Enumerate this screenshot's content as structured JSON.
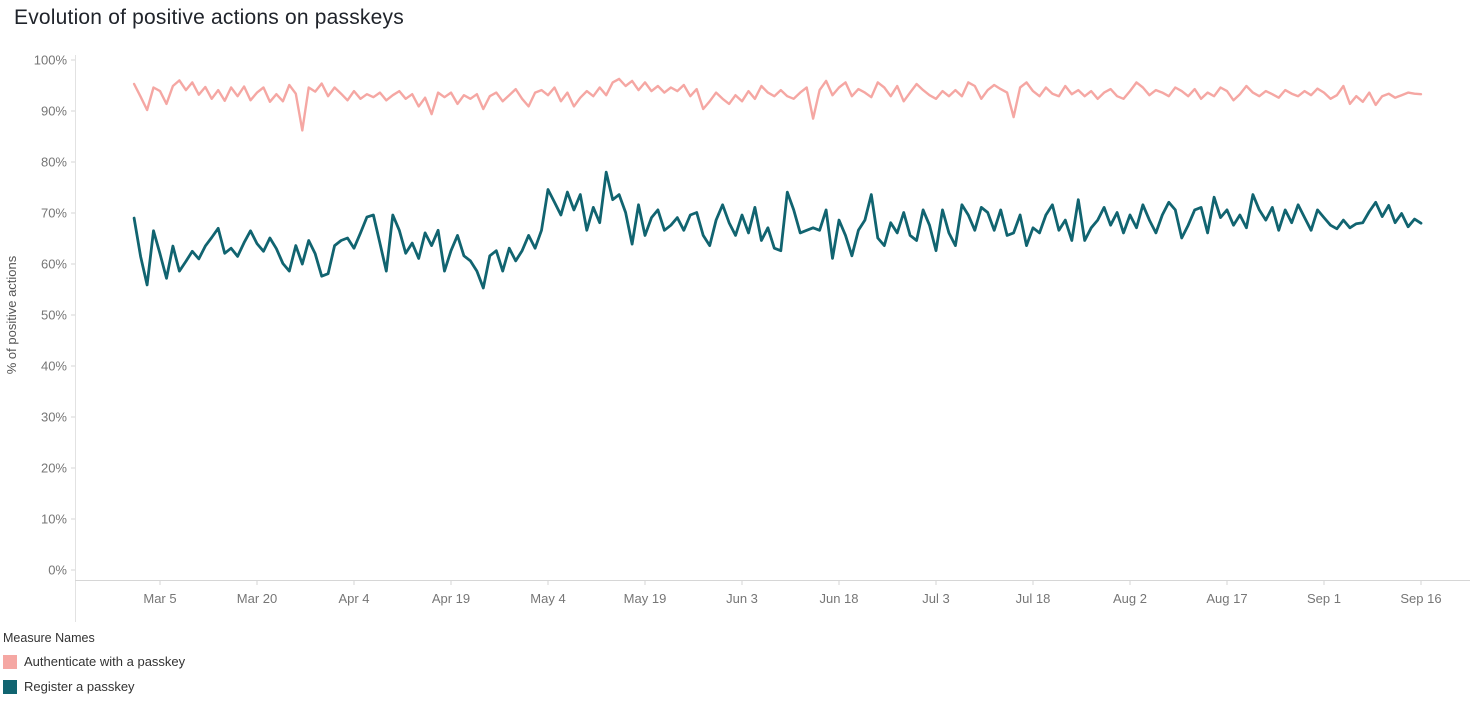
{
  "page": {
    "title": "Evolution of positive actions on passkeys"
  },
  "legend": {
    "title": "Measure Names",
    "items": [
      {
        "label": "Authenticate with a passkey",
        "color": "#f5a7a3"
      },
      {
        "label": "Register a passkey",
        "color": "#116470"
      }
    ]
  },
  "chart_data": {
    "type": "line",
    "title": "Evolution of positive actions on passkeys",
    "xlabel": "",
    "ylabel": "% of positive actions",
    "ylim": [
      0,
      100
    ],
    "grid": false,
    "legend_position": "bottom-left",
    "y_ticks": [
      {
        "value": 0,
        "label": "0%"
      },
      {
        "value": 10,
        "label": "10%"
      },
      {
        "value": 20,
        "label": "20%"
      },
      {
        "value": 30,
        "label": "30%"
      },
      {
        "value": 40,
        "label": "40%"
      },
      {
        "value": 50,
        "label": "50%"
      },
      {
        "value": 60,
        "label": "60%"
      },
      {
        "value": 70,
        "label": "70%"
      },
      {
        "value": 80,
        "label": "80%"
      },
      {
        "value": 90,
        "label": "90%"
      },
      {
        "value": 100,
        "label": "100%"
      }
    ],
    "x_ticks": [
      {
        "day": 4,
        "label": "Mar 5"
      },
      {
        "day": 19,
        "label": "Mar 20"
      },
      {
        "day": 34,
        "label": "Apr 4"
      },
      {
        "day": 49,
        "label": "Apr 19"
      },
      {
        "day": 64,
        "label": "May 4"
      },
      {
        "day": 79,
        "label": "May 19"
      },
      {
        "day": 94,
        "label": "Jun 3"
      },
      {
        "day": 109,
        "label": "Jun 18"
      },
      {
        "day": 124,
        "label": "Jul 3"
      },
      {
        "day": 139,
        "label": "Jul 18"
      },
      {
        "day": 154,
        "label": "Aug 2"
      },
      {
        "day": 169,
        "label": "Aug 17"
      },
      {
        "day": 184,
        "label": "Sep 1"
      },
      {
        "day": 199,
        "label": "Sep 16"
      }
    ],
    "series": [
      {
        "name": "Authenticate with a passkey",
        "color": "#f5a7a3",
        "stroke_width": 2.4,
        "values": [
          95.3,
          92.8,
          90.2,
          94.6,
          93.9,
          91.4,
          94.9,
          96.0,
          94.1,
          95.6,
          93.2,
          94.7,
          92.4,
          94.1,
          92.0,
          94.6,
          92.9,
          94.8,
          92.1,
          93.6,
          94.6,
          91.8,
          93.3,
          91.9,
          95.1,
          93.4,
          86.2,
          94.6,
          93.8,
          95.4,
          92.9,
          94.6,
          93.4,
          92.1,
          93.9,
          92.4,
          93.3,
          92.7,
          93.6,
          92.1,
          93.1,
          93.9,
          92.4,
          93.3,
          90.9,
          92.6,
          89.4,
          93.6,
          92.7,
          93.6,
          91.4,
          93.1,
          92.4,
          93.3,
          90.4,
          92.9,
          93.6,
          91.9,
          93.1,
          94.3,
          92.4,
          90.9,
          93.6,
          94.1,
          93.1,
          94.6,
          91.9,
          93.6,
          90.9,
          92.6,
          93.9,
          92.9,
          94.6,
          93.1,
          95.6,
          96.3,
          94.9,
          95.9,
          94.1,
          95.6,
          93.9,
          94.9,
          93.6,
          94.6,
          93.9,
          95.1,
          92.9,
          94.3,
          90.4,
          91.9,
          93.6,
          92.4,
          91.4,
          93.1,
          91.9,
          93.9,
          92.4,
          94.9,
          93.6,
          92.9,
          94.1,
          92.9,
          92.4,
          93.6,
          94.6,
          88.5,
          94.1,
          95.9,
          93.1,
          94.6,
          95.6,
          92.9,
          94.3,
          93.6,
          92.7,
          95.6,
          94.6,
          92.9,
          94.9,
          91.9,
          93.6,
          95.3,
          94.1,
          93.1,
          92.4,
          93.9,
          92.9,
          94.1,
          92.9,
          95.6,
          94.9,
          92.4,
          94.1,
          95.1,
          94.3,
          93.6,
          88.8,
          94.6,
          95.6,
          93.9,
          92.9,
          94.6,
          93.4,
          92.9,
          94.9,
          93.3,
          94.1,
          92.9,
          93.9,
          92.4,
          93.6,
          94.3,
          92.9,
          92.4,
          93.9,
          95.6,
          94.6,
          93.1,
          94.1,
          93.6,
          92.9,
          94.6,
          93.9,
          92.9,
          94.3,
          92.4,
          93.6,
          92.9,
          94.6,
          93.9,
          92.1,
          93.3,
          94.9,
          93.6,
          92.9,
          93.9,
          93.3,
          92.6,
          94.1,
          93.4,
          92.9,
          93.9,
          93.1,
          94.4,
          93.6,
          92.4,
          93.1,
          94.9,
          91.4,
          92.9,
          91.8,
          93.6,
          91.2,
          92.9,
          93.4,
          92.6,
          93.1,
          93.6,
          93.4,
          93.3
        ]
      },
      {
        "name": "Register a passkey",
        "color": "#116470",
        "stroke_width": 2.8,
        "values": [
          69.0,
          61.5,
          55.9,
          66.5,
          62.0,
          57.2,
          63.5,
          58.6,
          60.5,
          62.5,
          61.0,
          63.5,
          65.2,
          67.0,
          62.1,
          63.1,
          61.5,
          64.2,
          66.5,
          64.0,
          62.5,
          65.1,
          63.0,
          60.1,
          58.6,
          63.6,
          60.0,
          64.6,
          62.0,
          57.6,
          58.1,
          63.6,
          64.6,
          65.1,
          63.1,
          66.1,
          69.2,
          69.6,
          64.1,
          58.6,
          69.6,
          66.6,
          62.1,
          64.1,
          61.1,
          66.1,
          63.6,
          66.6,
          58.6,
          62.6,
          65.6,
          61.6,
          60.6,
          58.6,
          55.3,
          61.6,
          62.6,
          58.6,
          63.1,
          60.6,
          62.6,
          65.6,
          63.1,
          66.6,
          74.6,
          72.1,
          69.6,
          74.1,
          70.6,
          73.6,
          66.6,
          71.1,
          68.1,
          78.0,
          72.6,
          73.6,
          70.1,
          63.9,
          71.6,
          65.6,
          69.1,
          70.6,
          66.6,
          67.6,
          69.1,
          66.6,
          69.6,
          70.1,
          65.6,
          63.6,
          68.6,
          71.6,
          68.1,
          65.6,
          69.6,
          66.1,
          71.1,
          64.6,
          67.1,
          63.1,
          62.6,
          74.1,
          70.6,
          66.1,
          66.6,
          67.1,
          66.6,
          70.6,
          61.1,
          68.6,
          65.6,
          61.6,
          66.6,
          68.6,
          73.6,
          65.1,
          63.6,
          68.1,
          66.1,
          70.1,
          65.6,
          64.6,
          70.6,
          67.6,
          62.6,
          70.6,
          66.1,
          63.6,
          71.6,
          69.6,
          66.6,
          71.1,
          70.1,
          66.6,
          70.6,
          65.6,
          66.1,
          69.6,
          63.6,
          67.1,
          66.1,
          69.6,
          71.6,
          66.6,
          68.6,
          64.6,
          72.6,
          64.6,
          67.1,
          68.6,
          71.1,
          67.6,
          70.1,
          66.1,
          69.6,
          67.1,
          71.6,
          68.6,
          66.1,
          69.6,
          72.1,
          70.6,
          65.1,
          67.6,
          70.6,
          71.1,
          66.1,
          73.1,
          69.1,
          70.6,
          67.6,
          69.6,
          67.1,
          73.6,
          70.6,
          68.6,
          71.1,
          66.6,
          70.6,
          68.1,
          71.6,
          69.1,
          66.6,
          70.6,
          69.1,
          67.6,
          66.9,
          68.6,
          67.1,
          67.9,
          68.1,
          70.3,
          72.1,
          69.3,
          71.5,
          68.1,
          69.9,
          67.3,
          68.8,
          68.0
        ]
      }
    ]
  }
}
